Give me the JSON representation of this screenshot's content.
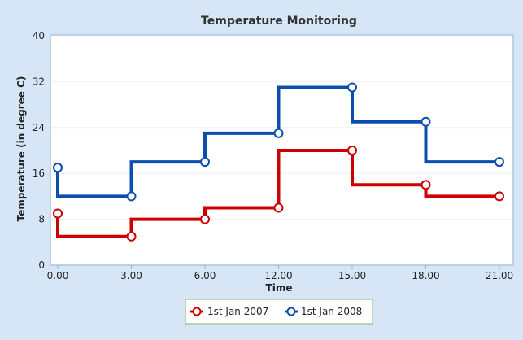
{
  "chart_data": {
    "type": "line",
    "step": "after",
    "title": "Temperature Monitoring",
    "xlabel": "Time",
    "ylabel": "Temperature (in degree C)",
    "categories": [
      "0.00",
      "3.00",
      "6.00",
      "12.00",
      "15.00",
      "18.00",
      "21.00"
    ],
    "ylim": [
      0,
      40
    ],
    "yticks": [
      0,
      8,
      16,
      24,
      32,
      40
    ],
    "grid": true,
    "legend_position": "bottom",
    "series": [
      {
        "name": "1st Jan 2007",
        "color": "#cc0000",
        "values": [
          9,
          5,
          8,
          10,
          20,
          14,
          12
        ],
        "step_values": [
          5,
          8,
          10,
          20,
          14,
          12,
          12
        ]
      },
      {
        "name": "1st Jan 2008",
        "color": "#0b4fae",
        "values": [
          17,
          12,
          18,
          23,
          31,
          25,
          18
        ],
        "step_values": [
          12,
          18,
          23,
          31,
          25,
          18,
          18
        ]
      }
    ]
  }
}
